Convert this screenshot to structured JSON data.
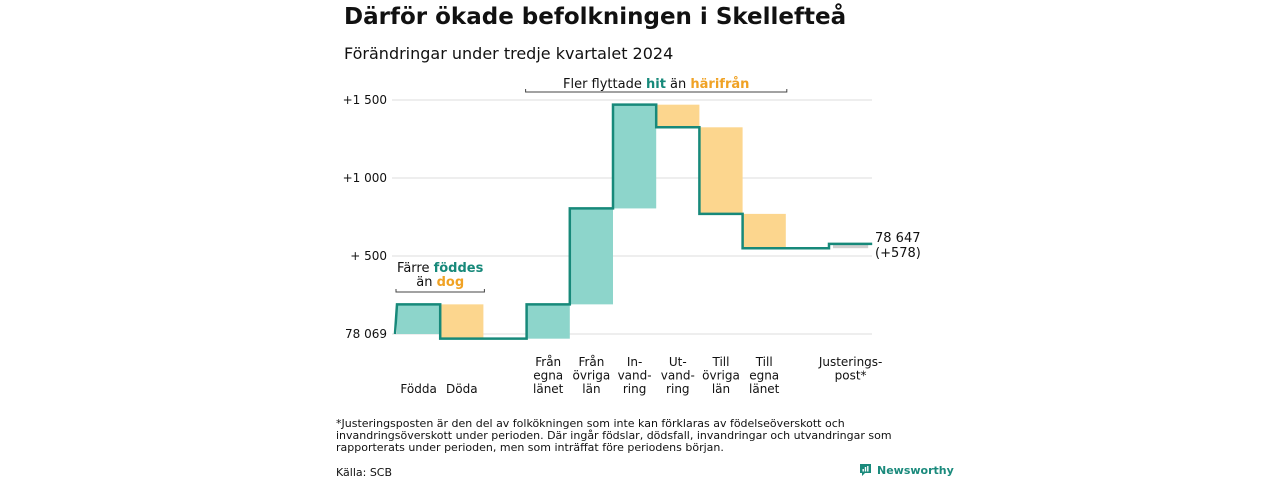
{
  "title": "Därför ökade befolkningen i Skellefteå",
  "subtitle": "Förändringar under tredje kvartalet 2024",
  "footnote": "*Justeringsposten är den del av folkökningen som inte kan förklaras av födelseöverskott och invandringsöverskott under perioden. Där ingår födslar, dödsfall, invandringar och utvandringar som rapporterats under perioden, men som inträffat före periodens början.",
  "source": "Källa: SCB",
  "logo_text": "Newsworthy",
  "colors": {
    "increase": "#8dd5cb",
    "decrease": "#fcd68e",
    "line": "#17897a",
    "orange_text": "#f0a224",
    "teal_text": "#17897a",
    "grid": "#dddddd",
    "total_bar": "#cfcfcf"
  },
  "chart_data": {
    "type": "waterfall",
    "start_value": 78069,
    "end_label": "78 647",
    "end_change_label": "(+578)",
    "ylim": [
      0,
      1500
    ],
    "yticks": [
      {
        "value": 0,
        "label": "78 069"
      },
      {
        "value": 500,
        "label": "+  500"
      },
      {
        "value": 1000,
        "label": "+1 000"
      },
      {
        "value": 1500,
        "label": "+1 500"
      }
    ],
    "steps": [
      {
        "label": [
          "Födda"
        ],
        "from": 0,
        "to": 190,
        "kind": "increase"
      },
      {
        "label": [
          "Döda"
        ],
        "from": 190,
        "to": -30,
        "kind": "decrease"
      },
      {
        "label": [
          ""
        ],
        "from": -30,
        "to": -30,
        "kind": "none"
      },
      {
        "label": [
          "Från",
          "egna",
          "länet"
        ],
        "from": -30,
        "to": 190,
        "kind": "increase"
      },
      {
        "label": [
          "Från",
          "övriga",
          "län"
        ],
        "from": 190,
        "to": 805,
        "kind": "increase"
      },
      {
        "label": [
          "In-",
          "vand-",
          "ring"
        ],
        "from": 805,
        "to": 1470,
        "kind": "increase"
      },
      {
        "label": [
          "Ut-",
          "vand-",
          "ring"
        ],
        "from": 1470,
        "to": 1325,
        "kind": "decrease"
      },
      {
        "label": [
          "Till",
          "övriga",
          "län"
        ],
        "from": 1325,
        "to": 770,
        "kind": "decrease"
      },
      {
        "label": [
          "Till",
          "egna",
          "länet"
        ],
        "from": 770,
        "to": 550,
        "kind": "decrease"
      },
      {
        "label": [
          ""
        ],
        "from": 550,
        "to": 550,
        "kind": "none"
      },
      {
        "label": [
          "Justerings-",
          "post*"
        ],
        "from": 550,
        "to": 578,
        "kind": "adjustment"
      }
    ],
    "annotations": [
      {
        "parts": [
          [
            "Färre ",
            "normal"
          ],
          [
            "föddes",
            "teal"
          ]
        ],
        "line2": [
          [
            "än ",
            "normal"
          ],
          [
            "dog",
            "orange"
          ]
        ],
        "bracket_from": 0,
        "bracket_to": 1
      },
      {
        "parts": [
          [
            "Fler flyttade ",
            "normal"
          ],
          [
            "hit",
            "teal"
          ],
          [
            "  än ",
            "normal"
          ],
          [
            "härifrån",
            "orange"
          ]
        ],
        "line2": [],
        "bracket_from": 3,
        "bracket_to": 8
      }
    ]
  }
}
